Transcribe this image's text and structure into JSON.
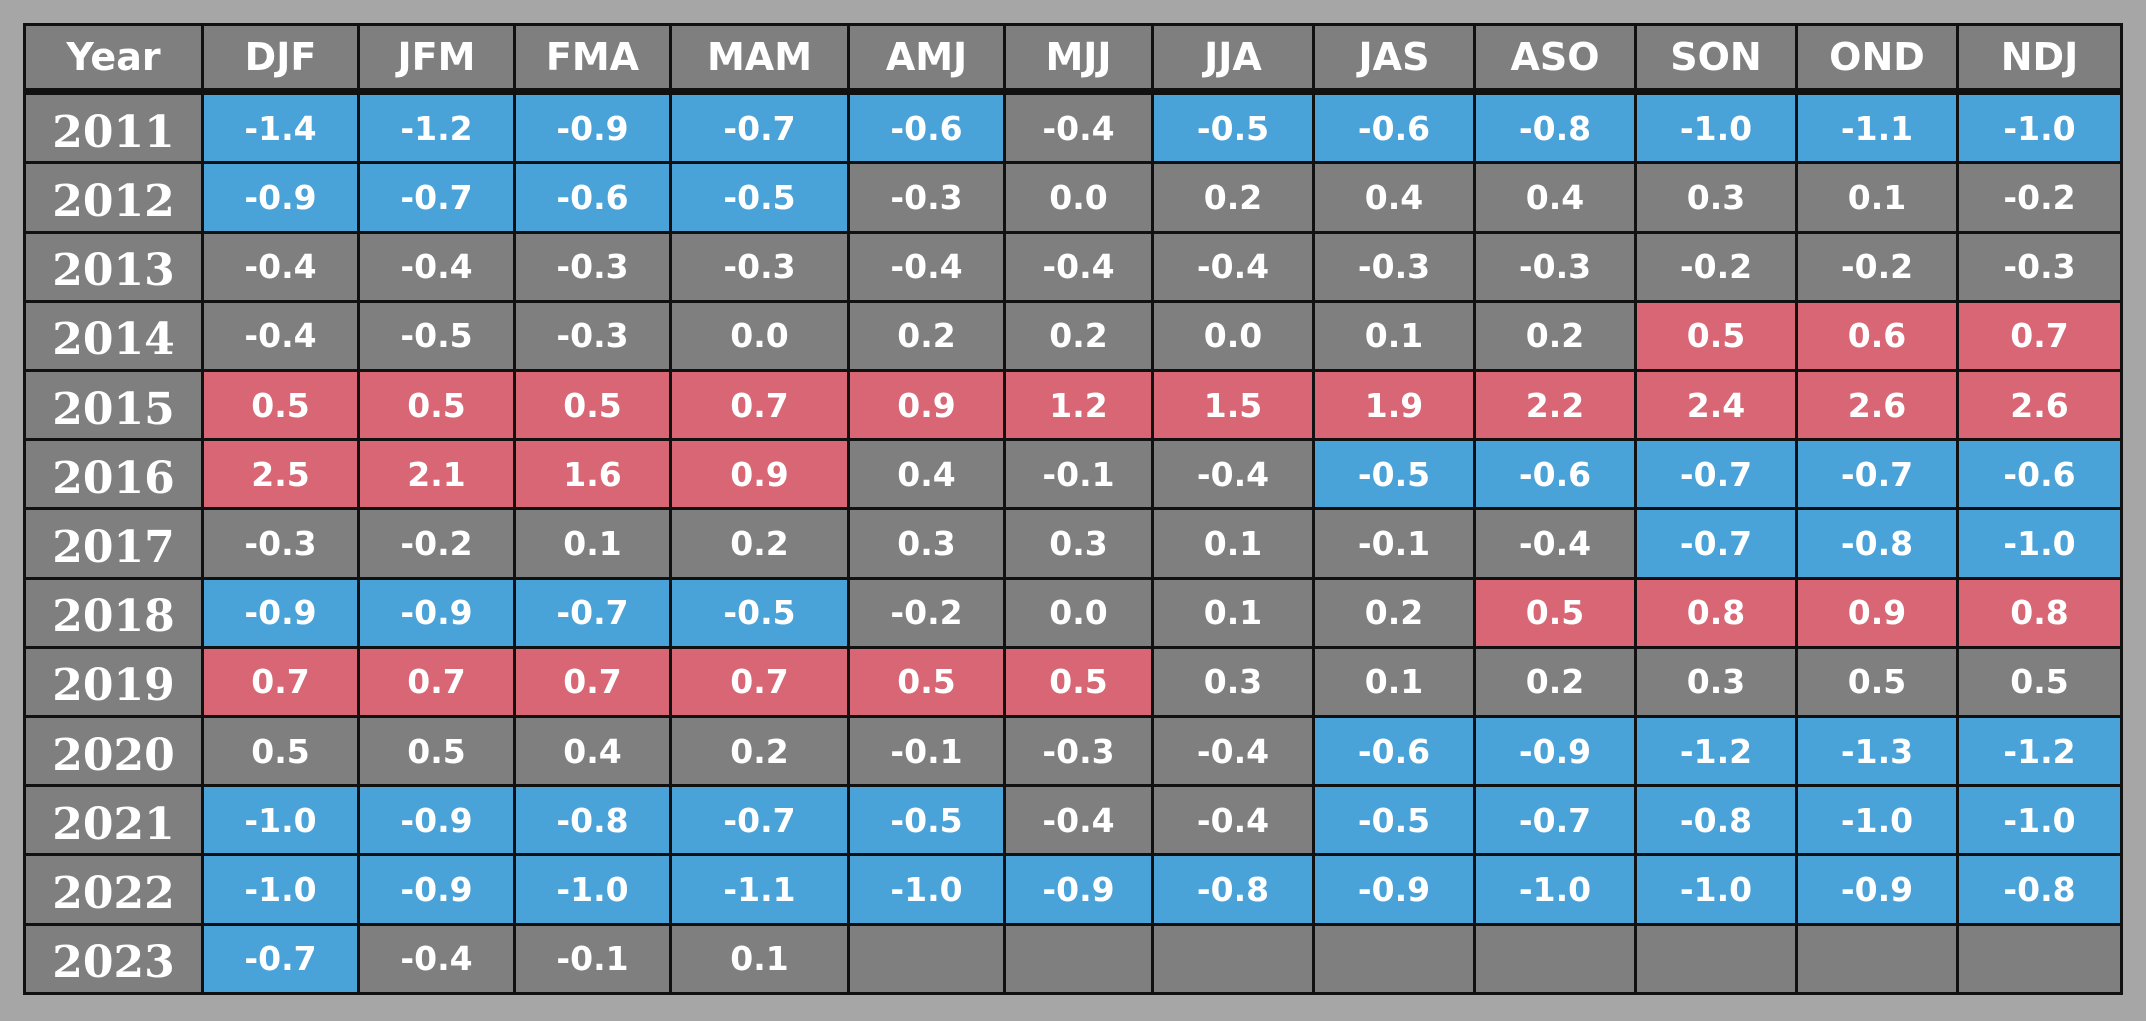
{
  "colors": {
    "cool": "#4aa3d8",
    "warm": "#d86674",
    "neutral": "#7f7f7f",
    "background": "#a6a6a6",
    "text": "#ffffff"
  },
  "chart_data": {
    "type": "table",
    "columns": [
      "Year",
      "DJF",
      "JFM",
      "FMA",
      "MAM",
      "AMJ",
      "MJJ",
      "JJA",
      "JAS",
      "ASO",
      "SON",
      "OND",
      "NDJ"
    ],
    "rows": [
      {
        "year": "2011",
        "values": [
          "-1.4",
          "-1.2",
          "-0.9",
          "-0.7",
          "-0.6",
          "-0.4",
          "-0.5",
          "-0.6",
          "-0.8",
          "-1.0",
          "-1.1",
          "-1.0"
        ],
        "classes": [
          "cool",
          "cool",
          "cool",
          "cool",
          "cool",
          "neutral",
          "cool",
          "cool",
          "cool",
          "cool",
          "cool",
          "cool"
        ]
      },
      {
        "year": "2012",
        "values": [
          "-0.9",
          "-0.7",
          "-0.6",
          "-0.5",
          "-0.3",
          "0.0",
          "0.2",
          "0.4",
          "0.4",
          "0.3",
          "0.1",
          "-0.2"
        ],
        "classes": [
          "cool",
          "cool",
          "cool",
          "cool",
          "neutral",
          "neutral",
          "neutral",
          "neutral",
          "neutral",
          "neutral",
          "neutral",
          "neutral"
        ]
      },
      {
        "year": "2013",
        "values": [
          "-0.4",
          "-0.4",
          "-0.3",
          "-0.3",
          "-0.4",
          "-0.4",
          "-0.4",
          "-0.3",
          "-0.3",
          "-0.2",
          "-0.2",
          "-0.3"
        ],
        "classes": [
          "neutral",
          "neutral",
          "neutral",
          "neutral",
          "neutral",
          "neutral",
          "neutral",
          "neutral",
          "neutral",
          "neutral",
          "neutral",
          "neutral"
        ]
      },
      {
        "year": "2014",
        "values": [
          "-0.4",
          "-0.5",
          "-0.3",
          "0.0",
          "0.2",
          "0.2",
          "0.0",
          "0.1",
          "0.2",
          "0.5",
          "0.6",
          "0.7"
        ],
        "classes": [
          "neutral",
          "neutral",
          "neutral",
          "neutral",
          "neutral",
          "neutral",
          "neutral",
          "neutral",
          "neutral",
          "warm",
          "warm",
          "warm"
        ]
      },
      {
        "year": "2015",
        "values": [
          "0.5",
          "0.5",
          "0.5",
          "0.7",
          "0.9",
          "1.2",
          "1.5",
          "1.9",
          "2.2",
          "2.4",
          "2.6",
          "2.6"
        ],
        "classes": [
          "warm",
          "warm",
          "warm",
          "warm",
          "warm",
          "warm",
          "warm",
          "warm",
          "warm",
          "warm",
          "warm",
          "warm"
        ]
      },
      {
        "year": "2016",
        "values": [
          "2.5",
          "2.1",
          "1.6",
          "0.9",
          "0.4",
          "-0.1",
          "-0.4",
          "-0.5",
          "-0.6",
          "-0.7",
          "-0.7",
          "-0.6"
        ],
        "classes": [
          "warm",
          "warm",
          "warm",
          "warm",
          "neutral",
          "neutral",
          "neutral",
          "cool",
          "cool",
          "cool",
          "cool",
          "cool"
        ]
      },
      {
        "year": "2017",
        "values": [
          "-0.3",
          "-0.2",
          "0.1",
          "0.2",
          "0.3",
          "0.3",
          "0.1",
          "-0.1",
          "-0.4",
          "-0.7",
          "-0.8",
          "-1.0"
        ],
        "classes": [
          "neutral",
          "neutral",
          "neutral",
          "neutral",
          "neutral",
          "neutral",
          "neutral",
          "neutral",
          "neutral",
          "cool",
          "cool",
          "cool"
        ]
      },
      {
        "year": "2018",
        "values": [
          "-0.9",
          "-0.9",
          "-0.7",
          "-0.5",
          "-0.2",
          "0.0",
          "0.1",
          "0.2",
          "0.5",
          "0.8",
          "0.9",
          "0.8"
        ],
        "classes": [
          "cool",
          "cool",
          "cool",
          "cool",
          "neutral",
          "neutral",
          "neutral",
          "neutral",
          "warm",
          "warm",
          "warm",
          "warm"
        ]
      },
      {
        "year": "2019",
        "values": [
          "0.7",
          "0.7",
          "0.7",
          "0.7",
          "0.5",
          "0.5",
          "0.3",
          "0.1",
          "0.2",
          "0.3",
          "0.5",
          "0.5"
        ],
        "classes": [
          "warm",
          "warm",
          "warm",
          "warm",
          "warm",
          "warm",
          "neutral",
          "neutral",
          "neutral",
          "neutral",
          "neutral",
          "neutral"
        ]
      },
      {
        "year": "2020",
        "values": [
          "0.5",
          "0.5",
          "0.4",
          "0.2",
          "-0.1",
          "-0.3",
          "-0.4",
          "-0.6",
          "-0.9",
          "-1.2",
          "-1.3",
          "-1.2"
        ],
        "classes": [
          "neutral",
          "neutral",
          "neutral",
          "neutral",
          "neutral",
          "neutral",
          "neutral",
          "cool",
          "cool",
          "cool",
          "cool",
          "cool"
        ]
      },
      {
        "year": "2021",
        "values": [
          "-1.0",
          "-0.9",
          "-0.8",
          "-0.7",
          "-0.5",
          "-0.4",
          "-0.4",
          "-0.5",
          "-0.7",
          "-0.8",
          "-1.0",
          "-1.0"
        ],
        "classes": [
          "cool",
          "cool",
          "cool",
          "cool",
          "cool",
          "neutral",
          "neutral",
          "cool",
          "cool",
          "cool",
          "cool",
          "cool"
        ]
      },
      {
        "year": "2022",
        "values": [
          "-1.0",
          "-0.9",
          "-1.0",
          "-1.1",
          "-1.0",
          "-0.9",
          "-0.8",
          "-0.9",
          "-1.0",
          "-1.0",
          "-0.9",
          "-0.8"
        ],
        "classes": [
          "cool",
          "cool",
          "cool",
          "cool",
          "cool",
          "cool",
          "cool",
          "cool",
          "cool",
          "cool",
          "cool",
          "cool"
        ]
      },
      {
        "year": "2023",
        "values": [
          "-0.7",
          "-0.4",
          "-0.1",
          "0.1",
          "",
          "",
          "",
          "",
          "",
          "",
          "",
          ""
        ],
        "classes": [
          "cool",
          "neutral",
          "neutral",
          "neutral",
          "neutral",
          "neutral",
          "neutral",
          "neutral",
          "neutral",
          "neutral",
          "neutral",
          "neutral"
        ]
      }
    ]
  }
}
